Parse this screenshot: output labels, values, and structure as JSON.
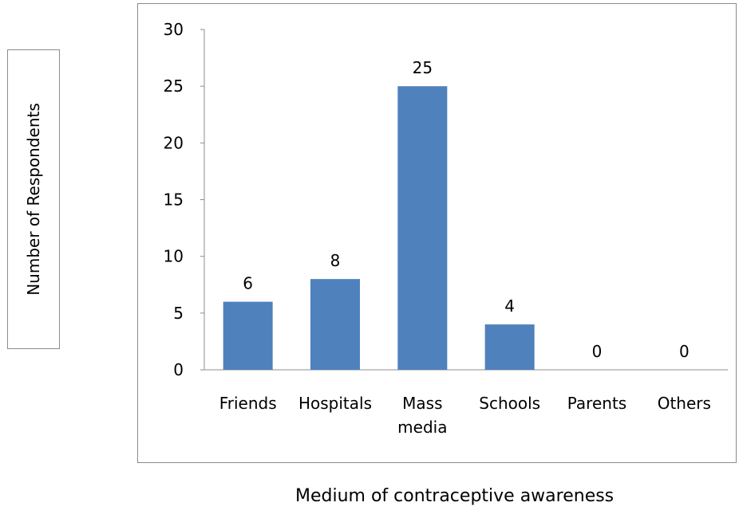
{
  "chart_data": {
    "type": "bar",
    "categories": [
      "Friends",
      "Hospitals",
      "Mass media",
      "Schools",
      "Parents",
      "Others"
    ],
    "category_lines": [
      [
        "Friends"
      ],
      [
        "Hospitals"
      ],
      [
        "Mass",
        "media"
      ],
      [
        "Schools"
      ],
      [
        "Parents"
      ],
      [
        "Others"
      ]
    ],
    "values": [
      6,
      8,
      25,
      4,
      0,
      0
    ],
    "data_labels": [
      "6",
      "8",
      "25",
      "4",
      "0",
      "0"
    ],
    "y_ticks": [
      "0",
      "5",
      "10",
      "15",
      "20",
      "25",
      "30"
    ],
    "ylim": [
      0,
      30
    ],
    "title": "",
    "xlabel": "Medium of contraceptive awareness",
    "ylabel": "Number of Respondents",
    "bar_color": "#4F81BD",
    "grid": false,
    "legend": "none"
  }
}
